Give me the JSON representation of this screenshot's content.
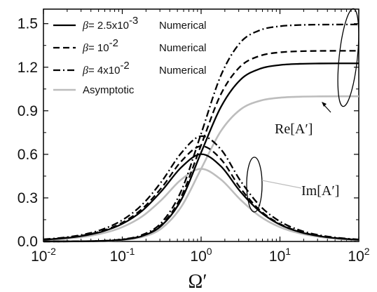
{
  "chart_data": {
    "type": "line",
    "title": "",
    "xlabel": "Ω′",
    "ylabel": "",
    "xscale": "log",
    "xlim": [
      0.01,
      100
    ],
    "ylim": [
      0,
      1.6
    ],
    "grid": false,
    "legend_position": "top-left",
    "x_ticks": [
      {
        "value": 0.01,
        "base": "10",
        "exp": "-2"
      },
      {
        "value": 0.1,
        "base": "10",
        "exp": "-1"
      },
      {
        "value": 1,
        "base": "10",
        "exp": "0"
      },
      {
        "value": 10,
        "base": "10",
        "exp": "1"
      },
      {
        "value": 100,
        "base": "10",
        "exp": "2"
      }
    ],
    "y_ticks": [
      {
        "value": 0.0,
        "label": "0.0"
      },
      {
        "value": 0.3,
        "label": "0.3"
      },
      {
        "value": 0.6,
        "label": "0.6"
      },
      {
        "value": 0.9,
        "label": "0.9"
      },
      {
        "value": 1.2,
        "label": "1.2"
      },
      {
        "value": 1.5,
        "label": "1.5"
      }
    ],
    "x": [
      0.01,
      0.0178,
      0.0316,
      0.0562,
      0.1,
      0.178,
      0.316,
      0.562,
      1.0,
      1.78,
      3.16,
      5.62,
      10,
      17.8,
      31.6,
      56.2,
      100
    ],
    "series": [
      {
        "name": "β= 2.5x10⁻³ Numerical",
        "legend_beta": "β",
        "legend_value": "= 2.5x10",
        "legend_exp": "-3",
        "legend_suffix": "Numerical",
        "style": "solid",
        "color": "#000000",
        "re": [
          0.00012,
          0.00038,
          0.0012,
          0.0038,
          0.0121,
          0.0373,
          0.11,
          0.2885,
          0.6123,
          0.9252,
          1.1141,
          1.1899,
          1.2152,
          1.2232,
          1.2257,
          1.2265,
          1.2268
        ],
        "im": [
          0.0122,
          0.0218,
          0.0387,
          0.0687,
          0.1213,
          0.2104,
          0.3484,
          0.5112,
          0.6011,
          0.518,
          0.3425,
          0.2039,
          0.1163,
          0.0654,
          0.0368,
          0.0207,
          0.0117
        ]
      },
      {
        "name": "β= 10⁻² Numerical",
        "legend_beta": "β",
        "legend_value": "= 10",
        "legend_exp": "-2",
        "legend_suffix": "Numerical",
        "style": "dash",
        "color": "#000000",
        "re": [
          0.00013,
          0.00041,
          0.0013,
          0.0041,
          0.0129,
          0.0396,
          0.1168,
          0.3117,
          0.6633,
          1.0136,
          1.2061,
          1.2789,
          1.3025,
          1.3099,
          1.3122,
          1.3129,
          1.3131
        ],
        "im": [
          0.0131,
          0.0233,
          0.0414,
          0.0734,
          0.1296,
          0.2241,
          0.3708,
          0.5526,
          0.6565,
          0.5671,
          0.3663,
          0.2134,
          0.1206,
          0.0677,
          0.0381,
          0.0214,
          0.0121
        ]
      },
      {
        "name": "β= 4x10⁻² Numerical",
        "legend_beta": "β",
        "legend_value": "= 4x10",
        "legend_exp": "-2",
        "legend_suffix": "Numerical",
        "style": "dashdot",
        "color": "#000000",
        "re": [
          0.00015,
          0.00047,
          0.0015,
          0.0047,
          0.0147,
          0.0448,
          0.1313,
          0.3505,
          0.7421,
          1.1425,
          1.3713,
          1.4553,
          1.4822,
          1.4906,
          1.4932,
          1.494,
          1.4943
        ],
        "im": [
          0.0149,
          0.0265,
          0.0471,
          0.0836,
          0.1471,
          0.253,
          0.4136,
          0.61,
          0.7252,
          0.6346,
          0.4175,
          0.244,
          0.1379,
          0.0774,
          0.0435,
          0.0245,
          0.0138
        ]
      },
      {
        "name": "Asymptotic",
        "legend_suffix": "Asymptotic",
        "style": "solid",
        "color": "#bdbdbd",
        "re": [
          0.0001,
          0.00032,
          0.001,
          0.0032,
          0.0099,
          0.0306,
          0.0909,
          0.2403,
          0.5,
          0.7597,
          0.9091,
          0.9694,
          0.9901,
          0.9968,
          0.999,
          0.9997,
          0.9999
        ],
        "im": [
          0.01,
          0.0178,
          0.0316,
          0.056,
          0.099,
          0.172,
          0.2875,
          0.4273,
          0.5,
          0.4273,
          0.2875,
          0.172,
          0.099,
          0.056,
          0.0316,
          0.0178,
          0.01
        ]
      }
    ],
    "annotations": {
      "re_label": "Re[A′]",
      "im_label": "Im[A′]"
    }
  }
}
